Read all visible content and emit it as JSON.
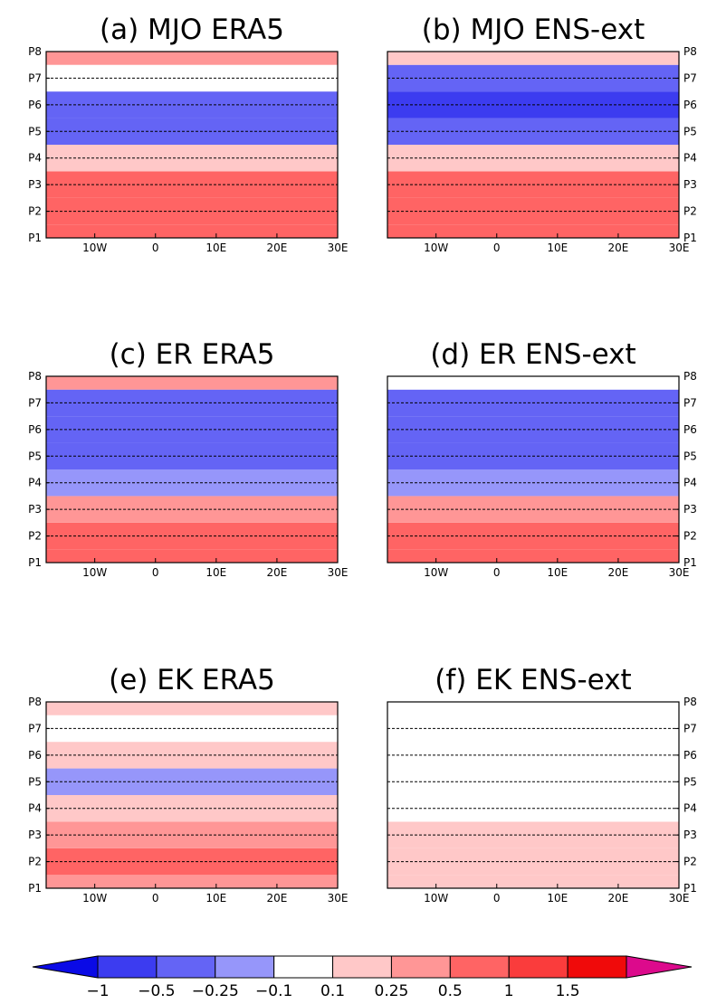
{
  "figure": {
    "x_ticks": [
      "10W",
      "0",
      "10E",
      "20E",
      "30E"
    ],
    "phase_labels": [
      "P1",
      "P2",
      "P3",
      "P4",
      "P5",
      "P6",
      "P7",
      "P8"
    ]
  },
  "chart_data": [
    {
      "type": "heatmap",
      "panel": "a",
      "title": "(a) MJO ERA5",
      "xlim": [
        "18W",
        "30E"
      ],
      "ylim": [
        "P1",
        "P8"
      ],
      "phase_lines": "dashed",
      "bands": [
        {
          "phase": "P1",
          "value": 0.9
        },
        {
          "phase": "P2",
          "value": 0.7
        },
        {
          "phase": "P3",
          "value": 0.8
        },
        {
          "phase": "P4",
          "value": 0.15
        },
        {
          "phase": "P5",
          "value": -0.3
        },
        {
          "phase": "P6",
          "value": -0.5
        },
        {
          "phase": "P7",
          "value": 0.0
        },
        {
          "phase": "P8",
          "value": 0.3
        }
      ]
    },
    {
      "type": "heatmap",
      "panel": "b",
      "title": "(b) MJO ENS-ext",
      "xlim": [
        "18W",
        "30E"
      ],
      "ylim": [
        "P1",
        "P8"
      ],
      "phase_lines": "dashed",
      "bands": [
        {
          "phase": "P1",
          "value": 0.6
        },
        {
          "phase": "P2",
          "value": 0.7
        },
        {
          "phase": "P3",
          "value": 0.6
        },
        {
          "phase": "P4",
          "value": 0.1
        },
        {
          "phase": "P5",
          "value": -0.45
        },
        {
          "phase": "P6",
          "value": -0.55
        },
        {
          "phase": "P7",
          "value": -0.3
        },
        {
          "phase": "P8",
          "value": 0.1
        }
      ]
    },
    {
      "type": "heatmap",
      "panel": "c",
      "title": "(c) ER ERA5",
      "xlim": [
        "18W",
        "30E"
      ],
      "ylim": [
        "P1",
        "P8"
      ],
      "phase_lines": "dashed",
      "bands": [
        {
          "phase": "P1",
          "value": 0.7
        },
        {
          "phase": "P2",
          "value": 0.6
        },
        {
          "phase": "P3",
          "value": 0.35
        },
        {
          "phase": "P4",
          "value": -0.2
        },
        {
          "phase": "P5",
          "value": -0.4
        },
        {
          "phase": "P6",
          "value": -0.45
        },
        {
          "phase": "P7",
          "value": -0.3
        },
        {
          "phase": "P8",
          "value": 0.3
        }
      ]
    },
    {
      "type": "heatmap",
      "panel": "d",
      "title": "(d) ER ENS-ext",
      "xlim": [
        "18W",
        "30E"
      ],
      "ylim": [
        "P1",
        "P8"
      ],
      "phase_lines": "dashed",
      "bands": [
        {
          "phase": "P1",
          "value": 0.6
        },
        {
          "phase": "P2",
          "value": 0.55
        },
        {
          "phase": "P3",
          "value": 0.3
        },
        {
          "phase": "P4",
          "value": -0.2
        },
        {
          "phase": "P5",
          "value": -0.4
        },
        {
          "phase": "P6",
          "value": -0.45
        },
        {
          "phase": "P7",
          "value": -0.3
        },
        {
          "phase": "P8",
          "value": 0.05
        }
      ]
    },
    {
      "type": "heatmap",
      "panel": "e",
      "title": "(e) EK ERA5",
      "xlim": [
        "18W",
        "30E"
      ],
      "ylim": [
        "P1",
        "P8"
      ],
      "phase_lines": "dashed",
      "bands": [
        {
          "phase": "P1",
          "value": 0.3
        },
        {
          "phase": "P2",
          "value": 0.5
        },
        {
          "phase": "P3",
          "value": 0.35
        },
        {
          "phase": "P4",
          "value": 0.2
        },
        {
          "phase": "P5",
          "value": -0.15
        },
        {
          "phase": "P6",
          "value": 0.15
        },
        {
          "phase": "P7",
          "value": 0.0
        },
        {
          "phase": "P8",
          "value": 0.2
        }
      ]
    },
    {
      "type": "heatmap",
      "panel": "f",
      "title": "(f) EK ENS-ext",
      "xlim": [
        "18W",
        "30E"
      ],
      "ylim": [
        "P1",
        "P8"
      ],
      "phase_lines": "dashed",
      "bands": [
        {
          "phase": "P1",
          "value": 0.15
        },
        {
          "phase": "P2",
          "value": 0.15
        },
        {
          "phase": "P3",
          "value": 0.1
        },
        {
          "phase": "P4",
          "value": 0.0
        },
        {
          "phase": "P5",
          "value": -0.1
        },
        {
          "phase": "P6",
          "value": -0.1
        },
        {
          "phase": "P7",
          "value": 0.0
        },
        {
          "phase": "P8",
          "value": 0.05
        }
      ]
    }
  ],
  "colorbar": {
    "levels": [
      -1,
      -0.5,
      -0.25,
      -0.1,
      0.1,
      0.25,
      0.5,
      1,
      1.5
    ],
    "labels": [
      "−1",
      "−0.5",
      "−0.25",
      "−0.1",
      "0.1",
      "0.25",
      "0.5",
      "1",
      "1.5"
    ],
    "colors": [
      "#0a0ae6",
      "#3c3cf0",
      "#6464f5",
      "#9696fa",
      "#ffffff",
      "#ffc8c8",
      "#ff9696",
      "#ff6464",
      "#fa3c3c",
      "#f00a0a",
      "#dc0a8c"
    ]
  }
}
